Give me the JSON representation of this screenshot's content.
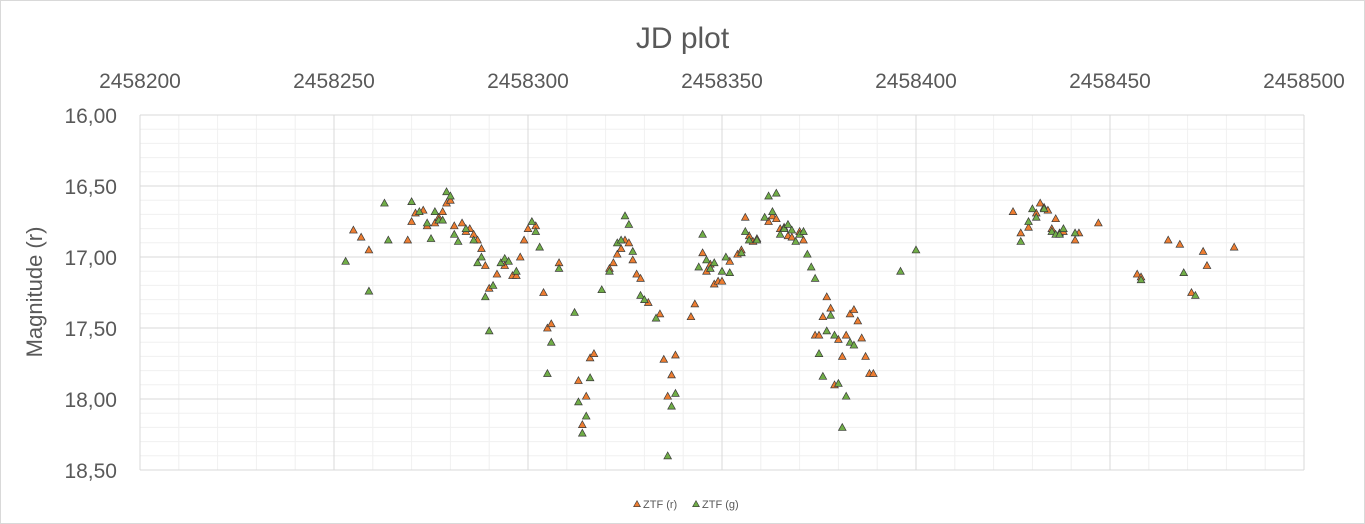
{
  "chart_data": {
    "type": "scatter",
    "title": "JD plot",
    "xlabel": "",
    "ylabel": "Magnitude (r)",
    "xlim": [
      2458200,
      2458500
    ],
    "ylim": [
      16.0,
      18.5
    ],
    "y_reversed": true,
    "x_axis_position": "top",
    "x_ticks": [
      "2458200",
      "2458250",
      "2458300",
      "2458350",
      "2458400",
      "2458450",
      "2458500"
    ],
    "x_tick_values": [
      2458200,
      2458250,
      2458300,
      2458350,
      2458400,
      2458450,
      2458500
    ],
    "y_ticks": [
      "16,00",
      "16,50",
      "17,00",
      "17,50",
      "18,00",
      "18,50"
    ],
    "y_tick_values": [
      16.0,
      16.5,
      17.0,
      17.5,
      18.0,
      18.5
    ],
    "grid": true,
    "legend_position": "bottom",
    "series": [
      {
        "name": "ZTF (r)",
        "color": "#ed7d31",
        "marker": "triangle",
        "points": [
          [
            2458255,
            16.81
          ],
          [
            2458257,
            16.86
          ],
          [
            2458259,
            16.95
          ],
          [
            2458269,
            16.88
          ],
          [
            2458270,
            16.75
          ],
          [
            2458271,
            16.69
          ],
          [
            2458273,
            16.67
          ],
          [
            2458274,
            16.78
          ],
          [
            2458276,
            16.76
          ],
          [
            2458277,
            16.72
          ],
          [
            2458278,
            16.68
          ],
          [
            2458279,
            16.62
          ],
          [
            2458280,
            16.6
          ],
          [
            2458281,
            16.78
          ],
          [
            2458283,
            16.76
          ],
          [
            2458284,
            16.82
          ],
          [
            2458285,
            16.8
          ],
          [
            2458286,
            16.84
          ],
          [
            2458287,
            16.88
          ],
          [
            2458288,
            16.94
          ],
          [
            2458289,
            17.06
          ],
          [
            2458290,
            17.22
          ],
          [
            2458292,
            17.12
          ],
          [
            2458294,
            17.06
          ],
          [
            2458296,
            17.13
          ],
          [
            2458297,
            17.13
          ],
          [
            2458298,
            17.0
          ],
          [
            2458299,
            16.88
          ],
          [
            2458300,
            16.8
          ],
          [
            2458302,
            16.78
          ],
          [
            2458304,
            17.25
          ],
          [
            2458305,
            17.5
          ],
          [
            2458306,
            17.47
          ],
          [
            2458308,
            17.04
          ],
          [
            2458313,
            17.87
          ],
          [
            2458314,
            18.18
          ],
          [
            2458315,
            17.98
          ],
          [
            2458316,
            17.71
          ],
          [
            2458317,
            17.68
          ],
          [
            2458321,
            17.08
          ],
          [
            2458322,
            17.04
          ],
          [
            2458323,
            16.98
          ],
          [
            2458324,
            16.94
          ],
          [
            2458325,
            16.88
          ],
          [
            2458326,
            16.9
          ],
          [
            2458327,
            17.02
          ],
          [
            2458328,
            17.12
          ],
          [
            2458329,
            17.15
          ],
          [
            2458331,
            17.32
          ],
          [
            2458334,
            17.4
          ],
          [
            2458335,
            17.72
          ],
          [
            2458336,
            17.98
          ],
          [
            2458337,
            17.83
          ],
          [
            2458338,
            17.69
          ],
          [
            2458342,
            17.42
          ],
          [
            2458343,
            17.33
          ],
          [
            2458345,
            16.97
          ],
          [
            2458346,
            17.1
          ],
          [
            2458347,
            17.05
          ],
          [
            2458348,
            17.19
          ],
          [
            2458349,
            17.17
          ],
          [
            2458350,
            17.17
          ],
          [
            2458352,
            17.03
          ],
          [
            2458354,
            16.98
          ],
          [
            2458355,
            16.95
          ],
          [
            2458356,
            16.72
          ],
          [
            2458357,
            16.85
          ],
          [
            2458358,
            16.89
          ],
          [
            2458359,
            16.87
          ],
          [
            2458362,
            16.75
          ],
          [
            2458363,
            16.71
          ],
          [
            2458364,
            16.73
          ],
          [
            2458365,
            16.8
          ],
          [
            2458366,
            16.79
          ],
          [
            2458367,
            16.85
          ],
          [
            2458368,
            16.86
          ],
          [
            2458370,
            16.82
          ],
          [
            2458371,
            16.88
          ],
          [
            2458374,
            17.55
          ],
          [
            2458375,
            17.55
          ],
          [
            2458376,
            17.42
          ],
          [
            2458377,
            17.28
          ],
          [
            2458378,
            17.36
          ],
          [
            2458379,
            17.9
          ],
          [
            2458380,
            17.58
          ],
          [
            2458381,
            17.7
          ],
          [
            2458382,
            17.55
          ],
          [
            2458383,
            17.4
          ],
          [
            2458384,
            17.37
          ],
          [
            2458385,
            17.45
          ],
          [
            2458386,
            17.57
          ],
          [
            2458387,
            17.7
          ],
          [
            2458388,
            17.82
          ],
          [
            2458389,
            17.82
          ],
          [
            2458425,
            16.68
          ],
          [
            2458427,
            16.83
          ],
          [
            2458429,
            16.79
          ],
          [
            2458431,
            16.69
          ],
          [
            2458432,
            16.62
          ],
          [
            2458433,
            16.65
          ],
          [
            2458434,
            16.67
          ],
          [
            2458435,
            16.8
          ],
          [
            2458436,
            16.73
          ],
          [
            2458437,
            16.83
          ],
          [
            2458438,
            16.82
          ],
          [
            2458441,
            16.88
          ],
          [
            2458442,
            16.83
          ],
          [
            2458447,
            16.76
          ],
          [
            2458457,
            17.12
          ],
          [
            2458458,
            17.14
          ],
          [
            2458465,
            16.88
          ],
          [
            2458468,
            16.91
          ],
          [
            2458471,
            17.25
          ],
          [
            2458474,
            16.96
          ],
          [
            2458475,
            17.06
          ],
          [
            2458482,
            16.93
          ]
        ]
      },
      {
        "name": "ZTF (g)",
        "color": "#70ad47",
        "marker": "triangle",
        "points": [
          [
            2458253,
            17.03
          ],
          [
            2458259,
            17.24
          ],
          [
            2458263,
            16.62
          ],
          [
            2458264,
            16.88
          ],
          [
            2458270,
            16.61
          ],
          [
            2458272,
            16.68
          ],
          [
            2458274,
            16.76
          ],
          [
            2458275,
            16.87
          ],
          [
            2458276,
            16.68
          ],
          [
            2458277,
            16.74
          ],
          [
            2458278,
            16.74
          ],
          [
            2458279,
            16.54
          ],
          [
            2458280,
            16.57
          ],
          [
            2458281,
            16.84
          ],
          [
            2458282,
            16.89
          ],
          [
            2458284,
            16.8
          ],
          [
            2458286,
            16.88
          ],
          [
            2458287,
            17.04
          ],
          [
            2458288,
            17.0
          ],
          [
            2458289,
            17.28
          ],
          [
            2458290,
            17.52
          ],
          [
            2458291,
            17.2
          ],
          [
            2458293,
            17.04
          ],
          [
            2458294,
            17.01
          ],
          [
            2458295,
            17.03
          ],
          [
            2458297,
            17.1
          ],
          [
            2458301,
            16.75
          ],
          [
            2458302,
            16.82
          ],
          [
            2458303,
            16.93
          ],
          [
            2458305,
            17.82
          ],
          [
            2458306,
            17.6
          ],
          [
            2458308,
            17.08
          ],
          [
            2458312,
            17.39
          ],
          [
            2458313,
            18.02
          ],
          [
            2458314,
            18.24
          ],
          [
            2458315,
            18.12
          ],
          [
            2458316,
            17.85
          ],
          [
            2458319,
            17.23
          ],
          [
            2458321,
            17.1
          ],
          [
            2458323,
            16.9
          ],
          [
            2458324,
            16.88
          ],
          [
            2458325,
            16.71
          ],
          [
            2458326,
            16.77
          ],
          [
            2458327,
            16.96
          ],
          [
            2458329,
            17.27
          ],
          [
            2458330,
            17.3
          ],
          [
            2458333,
            17.43
          ],
          [
            2458336,
            18.4
          ],
          [
            2458337,
            18.05
          ],
          [
            2458338,
            17.96
          ],
          [
            2458344,
            17.07
          ],
          [
            2458345,
            16.84
          ],
          [
            2458346,
            17.02
          ],
          [
            2458347,
            17.08
          ],
          [
            2458348,
            17.04
          ],
          [
            2458350,
            17.1
          ],
          [
            2458351,
            17.0
          ],
          [
            2458352,
            17.11
          ],
          [
            2458355,
            16.97
          ],
          [
            2458356,
            16.82
          ],
          [
            2458357,
            16.88
          ],
          [
            2458359,
            16.88
          ],
          [
            2458361,
            16.72
          ],
          [
            2458362,
            16.57
          ],
          [
            2458363,
            16.68
          ],
          [
            2458364,
            16.55
          ],
          [
            2458365,
            16.84
          ],
          [
            2458366,
            16.8
          ],
          [
            2458367,
            16.77
          ],
          [
            2458368,
            16.81
          ],
          [
            2458369,
            16.89
          ],
          [
            2458370,
            16.84
          ],
          [
            2458371,
            16.82
          ],
          [
            2458372,
            16.98
          ],
          [
            2458373,
            17.07
          ],
          [
            2458374,
            17.15
          ],
          [
            2458375,
            17.68
          ],
          [
            2458376,
            17.84
          ],
          [
            2458377,
            17.52
          ],
          [
            2458378,
            17.41
          ],
          [
            2458379,
            17.55
          ],
          [
            2458380,
            17.89
          ],
          [
            2458381,
            18.2
          ],
          [
            2458382,
            17.98
          ],
          [
            2458383,
            17.6
          ],
          [
            2458384,
            17.62
          ],
          [
            2458396,
            17.1
          ],
          [
            2458400,
            16.95
          ],
          [
            2458427,
            16.89
          ],
          [
            2458429,
            16.75
          ],
          [
            2458430,
            16.66
          ],
          [
            2458431,
            16.72
          ],
          [
            2458433,
            16.66
          ],
          [
            2458435,
            16.82
          ],
          [
            2458436,
            16.84
          ],
          [
            2458437,
            16.84
          ],
          [
            2458438,
            16.8
          ],
          [
            2458441,
            16.83
          ],
          [
            2458458,
            17.16
          ],
          [
            2458469,
            17.11
          ],
          [
            2458472,
            17.27
          ]
        ]
      }
    ]
  }
}
